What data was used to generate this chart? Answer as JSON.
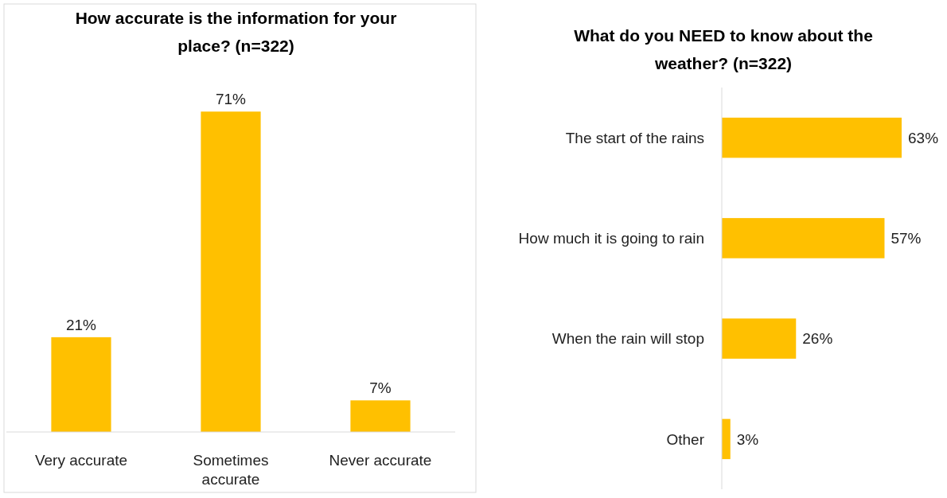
{
  "chart_data": [
    {
      "type": "bar",
      "title": "How accurate is the information for your place? (n=322)",
      "categories": [
        "Very accurate",
        "Sometimes accurate",
        "Never accurate"
      ],
      "values": [
        21,
        71,
        7
      ],
      "color": "#ffc000",
      "value_labels": [
        "21%",
        "71%",
        "7%"
      ]
    },
    {
      "type": "bar",
      "orientation": "horizontal",
      "title": "What do you NEED to know about the weather? (n=322)",
      "categories": [
        "The start of the rains",
        "How much it is going to rain",
        "When the rain will stop",
        "Other"
      ],
      "values": [
        63,
        57,
        26,
        3
      ],
      "color": "#ffc000",
      "value_labels": [
        "63%",
        "57%",
        "26%",
        "3%"
      ]
    }
  ]
}
